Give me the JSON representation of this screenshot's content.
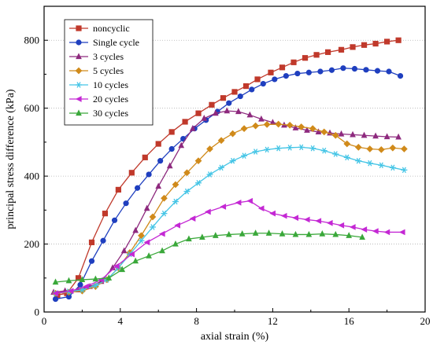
{
  "chart_data": {
    "type": "line",
    "title": "",
    "xlabel": "axial strain (%)",
    "ylabel": "principal stress difference (kPa)",
    "xlim": [
      0,
      20
    ],
    "ylim": [
      0,
      900
    ],
    "xticks": [
      0,
      4,
      8,
      12,
      16,
      20
    ],
    "yticks": [
      0,
      200,
      400,
      600,
      800
    ],
    "grid": "horizontal-dotted",
    "legend_position": "top-left",
    "series": [
      {
        "name": "noncyclic",
        "color": "#c0392b",
        "marker": "square",
        "x": [
          0.7,
          1.2,
          1.8,
          2.5,
          3.2,
          3.9,
          4.6,
          5.3,
          6.0,
          6.7,
          7.4,
          8.1,
          8.8,
          9.4,
          10.0,
          10.6,
          11.2,
          11.9,
          12.5,
          13.1,
          13.7,
          14.3,
          14.9,
          15.6,
          16.2,
          16.8,
          17.4,
          18.0,
          18.6
        ],
        "y": [
          50,
          55,
          100,
          205,
          290,
          360,
          410,
          455,
          495,
          530,
          560,
          585,
          610,
          630,
          648,
          665,
          685,
          705,
          720,
          735,
          748,
          757,
          765,
          772,
          780,
          786,
          790,
          796,
          800
        ]
      },
      {
        "name": "Single cycle",
        "color": "#1f3fbf",
        "marker": "circle",
        "x": [
          0.6,
          1.3,
          1.9,
          2.5,
          3.1,
          3.7,
          4.3,
          4.9,
          5.5,
          6.1,
          6.7,
          7.3,
          7.9,
          8.5,
          9.1,
          9.7,
          10.3,
          10.9,
          11.5,
          12.1,
          12.7,
          13.3,
          13.9,
          14.5,
          15.1,
          15.7,
          16.3,
          16.9,
          17.5,
          18.1,
          18.7
        ],
        "y": [
          38,
          45,
          80,
          150,
          210,
          270,
          320,
          365,
          405,
          445,
          480,
          510,
          540,
          565,
          590,
          615,
          635,
          655,
          672,
          685,
          695,
          702,
          705,
          708,
          712,
          718,
          716,
          713,
          710,
          708,
          695
        ]
      },
      {
        "name": "3 cycles",
        "color": "#8e2a7e",
        "marker": "triangle",
        "x": [
          0.5,
          1.1,
          1.8,
          2.4,
          3.0,
          3.6,
          4.2,
          4.8,
          5.4,
          6.0,
          6.6,
          7.2,
          7.8,
          8.4,
          9.0,
          9.6,
          10.2,
          10.8,
          11.4,
          12.0,
          12.6,
          13.2,
          13.8,
          14.4,
          15.0,
          15.6,
          16.2,
          16.8,
          17.4,
          18.0,
          18.6
        ],
        "y": [
          58,
          62,
          65,
          75,
          90,
          130,
          180,
          240,
          305,
          370,
          430,
          490,
          540,
          570,
          585,
          592,
          590,
          580,
          568,
          558,
          550,
          542,
          535,
          530,
          527,
          524,
          522,
          520,
          518,
          516,
          515
        ]
      },
      {
        "name": "5 cycles",
        "color": "#d08a1a",
        "marker": "diamond",
        "x": [
          0.6,
          1.3,
          2.0,
          2.7,
          3.3,
          3.9,
          4.5,
          5.1,
          5.7,
          6.3,
          6.9,
          7.5,
          8.1,
          8.7,
          9.3,
          9.9,
          10.5,
          11.1,
          11.7,
          12.3,
          12.9,
          13.5,
          14.1,
          14.7,
          15.3,
          15.9,
          16.5,
          17.1,
          17.7,
          18.3,
          18.9
        ],
        "y": [
          55,
          58,
          62,
          75,
          95,
          130,
          175,
          225,
          280,
          335,
          375,
          410,
          445,
          480,
          505,
          525,
          540,
          548,
          552,
          553,
          550,
          545,
          540,
          530,
          520,
          495,
          485,
          480,
          478,
          483,
          480
        ]
      },
      {
        "name": "10 cycles",
        "color": "#45c5e6",
        "marker": "star",
        "x": [
          0.6,
          1.3,
          2.0,
          2.7,
          3.3,
          3.9,
          4.5,
          5.1,
          5.7,
          6.3,
          6.9,
          7.5,
          8.1,
          8.7,
          9.3,
          9.9,
          10.5,
          11.1,
          11.7,
          12.3,
          12.9,
          13.5,
          14.1,
          14.7,
          15.3,
          15.9,
          16.5,
          17.1,
          17.7,
          18.3,
          18.9
        ],
        "y": [
          55,
          60,
          65,
          78,
          95,
          130,
          170,
          210,
          250,
          290,
          325,
          355,
          380,
          405,
          425,
          445,
          460,
          472,
          478,
          482,
          484,
          485,
          482,
          475,
          465,
          455,
          445,
          438,
          432,
          425,
          418
        ]
      },
      {
        "name": "20 cycles",
        "color": "#c428d4",
        "marker": "left-triangle",
        "x": [
          0.6,
          1.4,
          2.2,
          3.0,
          3.8,
          4.6,
          5.4,
          6.2,
          7.0,
          7.8,
          8.6,
          9.4,
          10.2,
          10.8,
          11.4,
          12.0,
          12.6,
          13.2,
          13.8,
          14.4,
          15.0,
          15.6,
          16.2,
          16.8,
          17.4,
          18.0,
          18.8
        ],
        "y": [
          55,
          62,
          75,
          95,
          135,
          170,
          205,
          230,
          255,
          275,
          295,
          310,
          322,
          327,
          305,
          290,
          283,
          277,
          272,
          268,
          262,
          255,
          250,
          243,
          238,
          235,
          235
        ]
      },
      {
        "name": "30 cycles",
        "color": "#3aa83a",
        "marker": "up-triangle",
        "x": [
          0.6,
          1.3,
          2.0,
          2.7,
          3.4,
          4.1,
          4.8,
          5.5,
          6.2,
          6.9,
          7.6,
          8.3,
          9.0,
          9.7,
          10.4,
          11.1,
          11.8,
          12.5,
          13.2,
          13.9,
          14.6,
          15.3,
          16.0,
          16.7
        ],
        "y": [
          88,
          92,
          95,
          97,
          100,
          125,
          150,
          165,
          180,
          200,
          215,
          220,
          225,
          228,
          230,
          232,
          232,
          230,
          228,
          228,
          230,
          228,
          225,
          220
        ]
      }
    ]
  }
}
